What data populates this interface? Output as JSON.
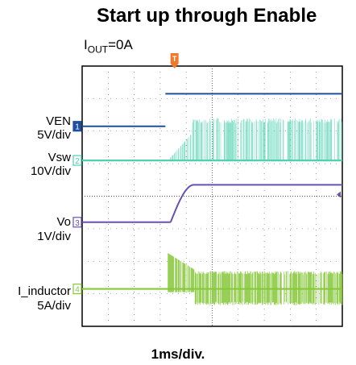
{
  "title": "Start up through Enable",
  "condition": {
    "main": "I",
    "sub": "OUT",
    "rest": "=0A"
  },
  "chart_data": {
    "type": "line",
    "title": "Start up through Enable",
    "subtitle": "IOUT=0A",
    "xlabel": "1ms/div.",
    "x_divisions": 10,
    "y_divisions": 8,
    "trigger_marker": "T",
    "trigger_time_div": 3.55,
    "grid": true,
    "series": [
      {
        "name": "VEN",
        "scale": "5V/div",
        "channel": "1",
        "color": "#1f4e9c",
        "baseline_div": 6.15,
        "low_div": 6.15,
        "high_div": 7.15,
        "step_time_div": 3.2
      },
      {
        "name": "Vsw",
        "scale": "10V/div",
        "channel": "2",
        "color": "#4fd0b0",
        "baseline_div": 5.1,
        "switching_start_div": 3.3,
        "switching_top_div": 6.4
      },
      {
        "name": "Vo",
        "scale": "1V/div",
        "channel": "3",
        "color": "#6a4fb5",
        "baseline_div": 3.2,
        "rise_start_div": 3.4,
        "rise_end_div": 4.3,
        "final_div": 4.35
      },
      {
        "name": "I_inductor",
        "scale": "5A/div",
        "channel": "4",
        "color": "#86c83a",
        "baseline_div": 1.15,
        "switching_start_div": 3.3,
        "band_top_div": 1.7,
        "band_bottom_div": 0.65
      }
    ]
  },
  "labels": {
    "ven": {
      "name": "VEN",
      "scale": "5V/div"
    },
    "vsw": {
      "name": "Vsw",
      "scale": "10V/div"
    },
    "vo": {
      "name": "Vo",
      "scale": "1V/div"
    },
    "il": {
      "name": "I_inductor",
      "scale": "5A/div"
    }
  },
  "x_label": "1ms/div."
}
